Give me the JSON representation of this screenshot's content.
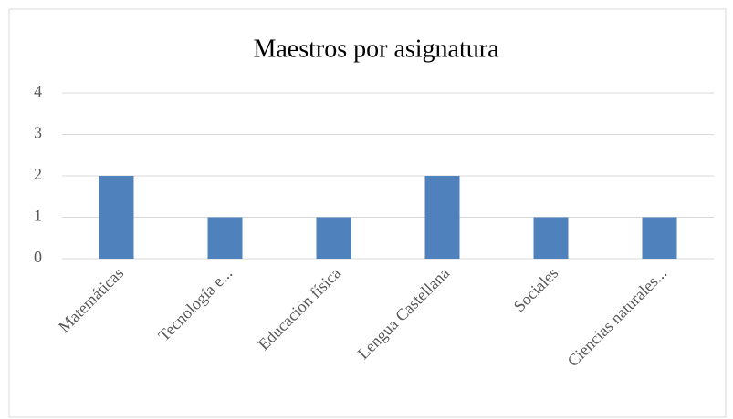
{
  "chart_data": {
    "type": "bar",
    "title": "Maestros por asignatura",
    "categories": [
      "Matemáticas",
      "Tecnología e...",
      "Educación física",
      "Lengua Castellana",
      "Sociales",
      "Ciencias naturales..."
    ],
    "values": [
      2,
      1,
      1,
      2,
      1,
      1
    ],
    "color": "#4f81bd",
    "ylim": [
      0,
      4
    ],
    "yticks": [
      0,
      1,
      2,
      3,
      4
    ],
    "grid": true
  }
}
